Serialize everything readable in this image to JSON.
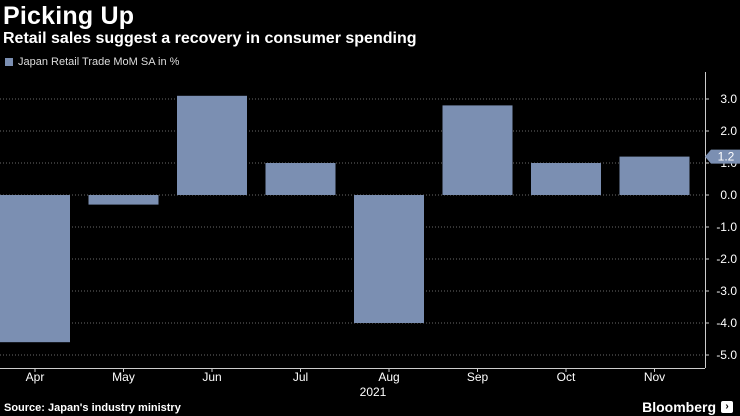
{
  "header": {
    "title": "Picking Up",
    "subtitle": "Retail sales suggest a recovery in consumer spending"
  },
  "legend": {
    "label": "Japan Retail Trade MoM SA in %"
  },
  "footer": {
    "source": "Source: Japan's industry ministry",
    "brand": "Bloomberg"
  },
  "colors": {
    "background": "#000000",
    "bar": "#7b8fb2",
    "grid": "#6a6a6a",
    "text": "#ffffff"
  },
  "chart_data": {
    "type": "bar",
    "title": "Picking Up",
    "subtitle": "Retail sales suggest a recovery in consumer spending",
    "categories": [
      "Apr",
      "May",
      "Jun",
      "Jul",
      "Aug",
      "Sep",
      "Oct",
      "Nov"
    ],
    "series": [
      {
        "name": "Japan Retail Trade MoM SA in %",
        "values": [
          -4.6,
          -0.3,
          3.1,
          1.0,
          -4.0,
          2.8,
          1.0,
          1.2
        ]
      }
    ],
    "year_label": "2021",
    "ylim": [
      -5.0,
      3.0
    ],
    "yticks": [
      -5.0,
      -4.0,
      -3.0,
      -2.0,
      -1.0,
      0.0,
      1.0,
      2.0,
      3.0
    ],
    "ytick_labels": [
      "-5.0",
      "-4.0",
      "-3.0",
      "-2.0",
      "-1.0",
      "0.0",
      "1.0",
      "2.0",
      "3.0"
    ],
    "last_value_label": "1.2",
    "axis_position": "right",
    "grid": true,
    "legend_position": "top-left"
  }
}
